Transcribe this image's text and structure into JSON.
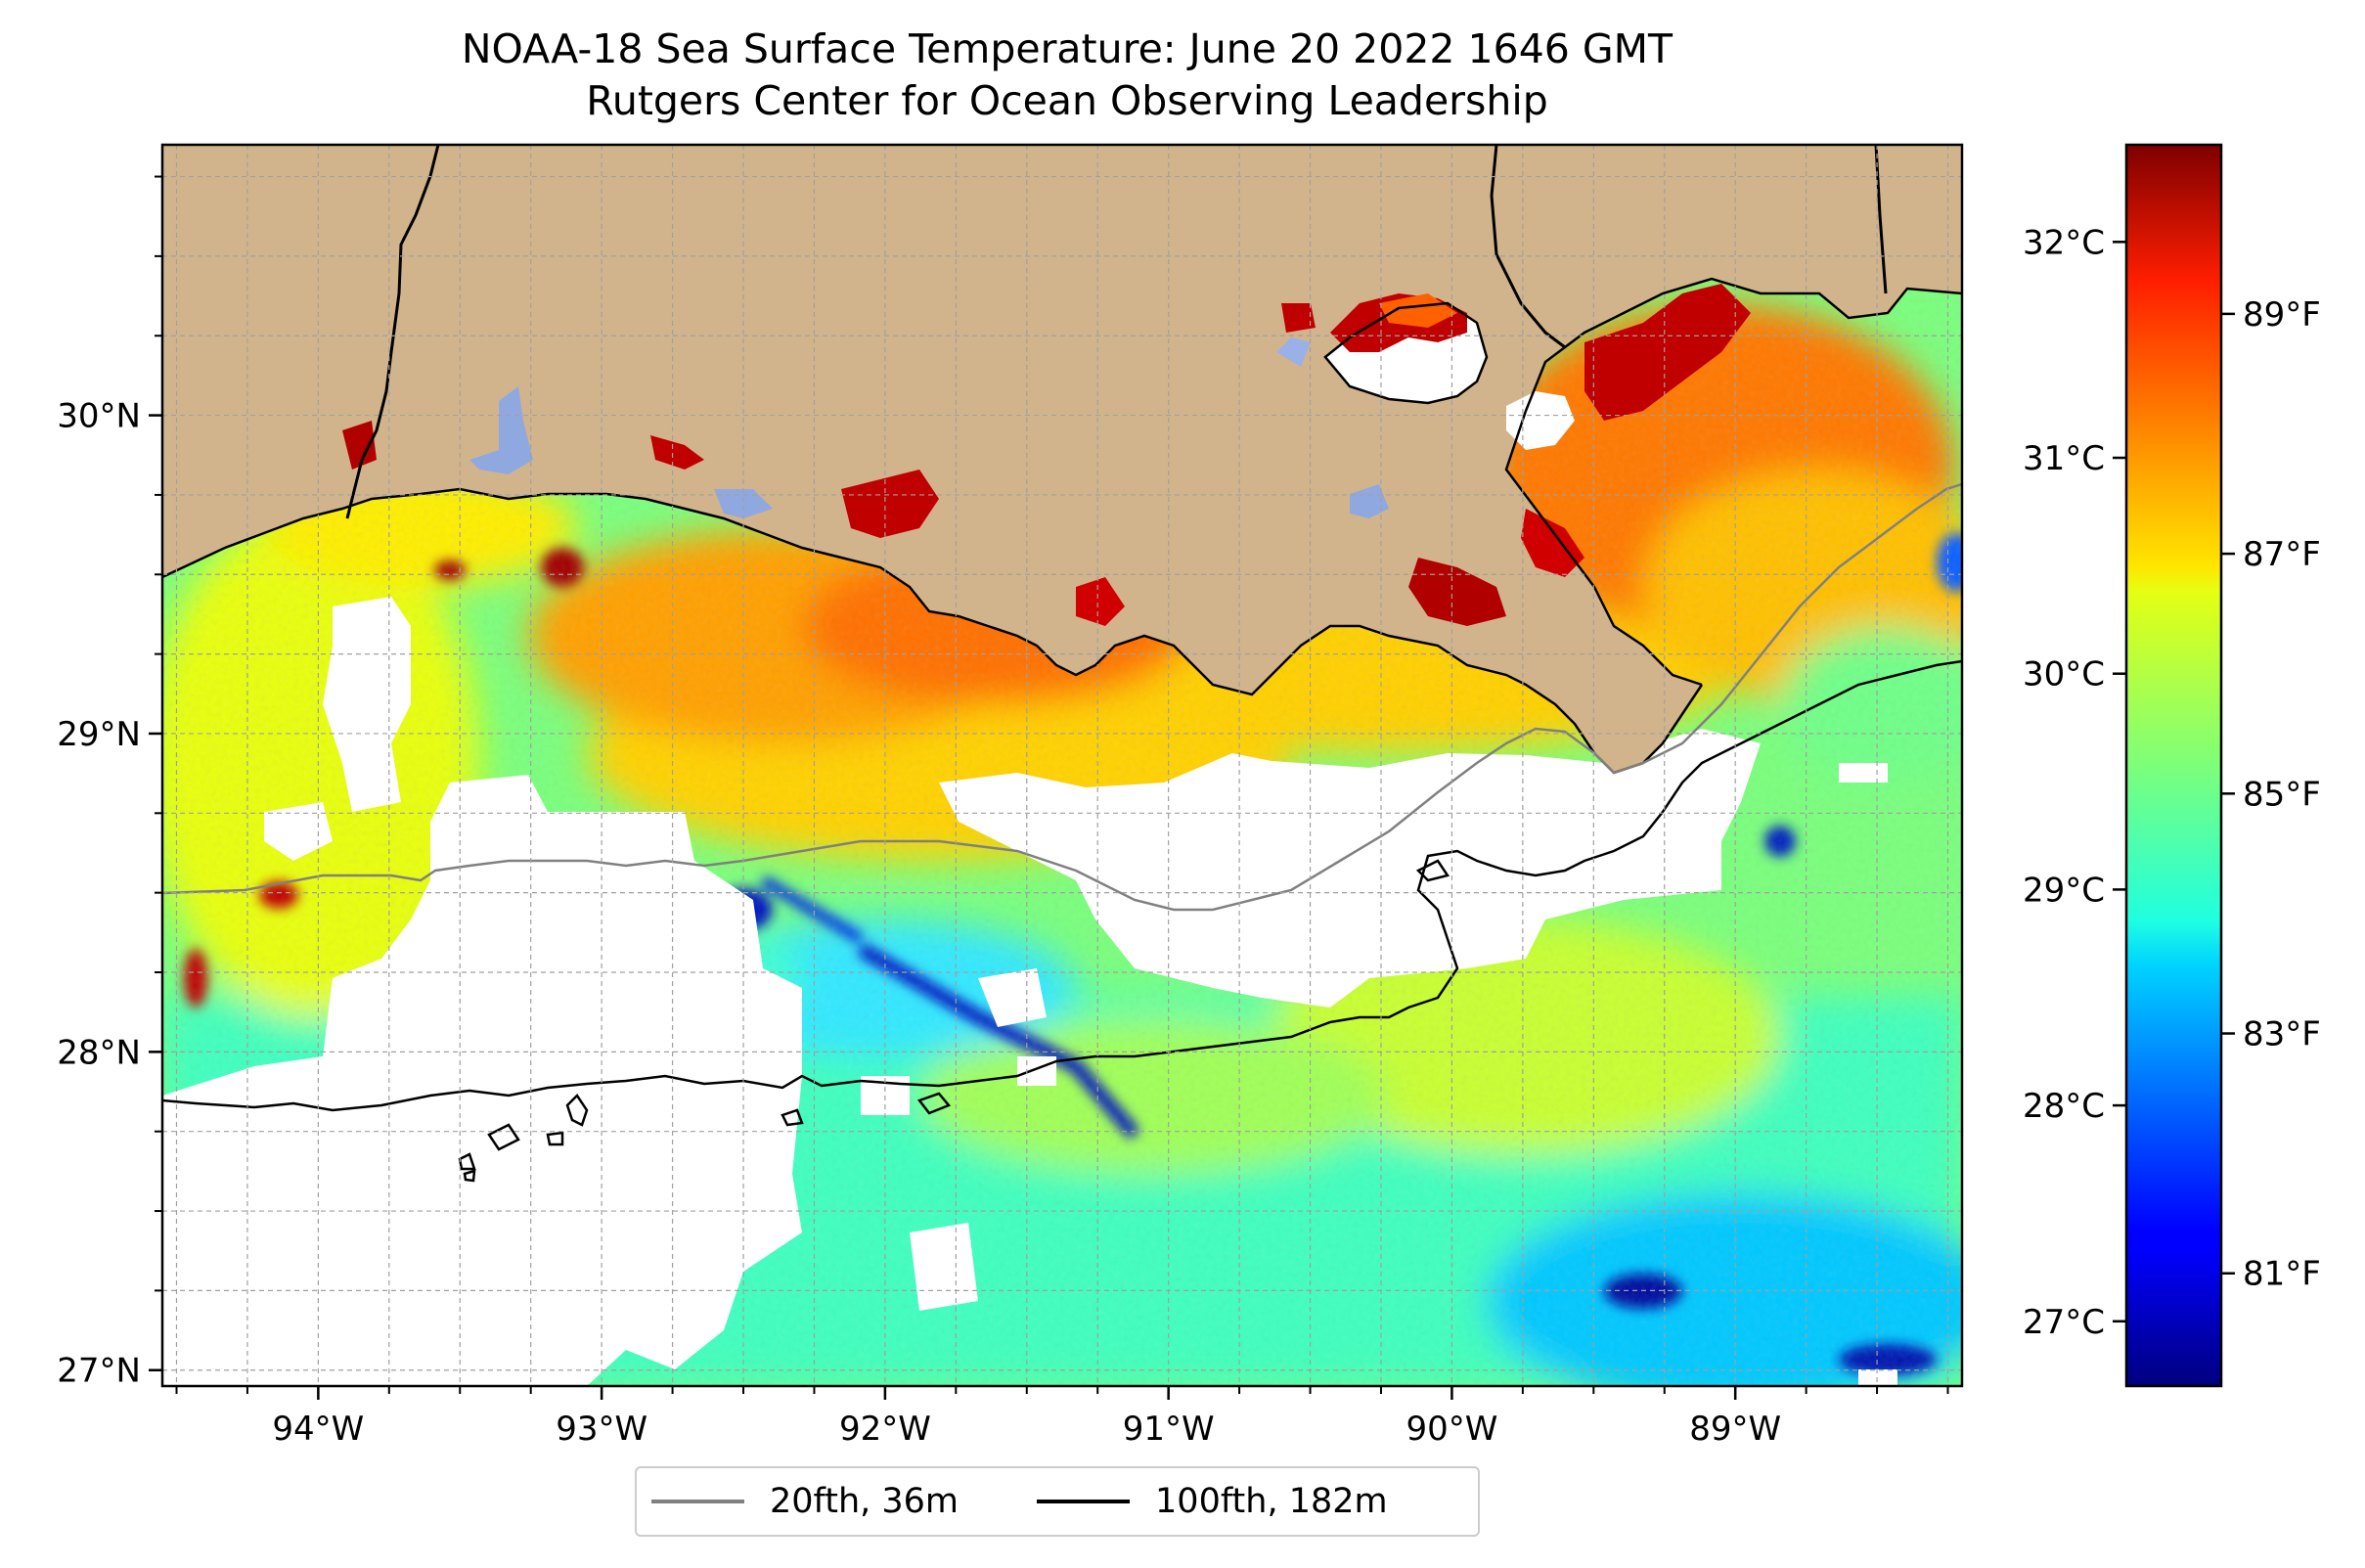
{
  "title": {
    "line1": "NOAA-18 Sea Surface Temperature: June 20 2022 1646 GMT",
    "line2": "Rutgers Center for Ocean Observing Leadership"
  },
  "map": {
    "lon_range": [
      -94.55,
      -88.2
    ],
    "lat_range": [
      26.95,
      30.85
    ],
    "lon_ticks": [
      {
        "value": -94,
        "label": "94°W"
      },
      {
        "value": -93,
        "label": "93°W"
      },
      {
        "value": -92,
        "label": "92°W"
      },
      {
        "value": -91,
        "label": "91°W"
      },
      {
        "value": -90,
        "label": "90°W"
      },
      {
        "value": -89,
        "label": "89°W"
      }
    ],
    "lat_ticks": [
      {
        "value": 27,
        "label": "27°N"
      },
      {
        "value": 28,
        "label": "28°N"
      },
      {
        "value": 29,
        "label": "29°N"
      },
      {
        "value": 30,
        "label": "30°N"
      }
    ],
    "minor_grid_step_deg": 0.25,
    "grid": true,
    "colors": {
      "land": "#d2b48c",
      "no_data": "#ffffff",
      "inland_water": "#8fa8e0",
      "grid": "#a0a0a0",
      "isobath_20fth": "#808080",
      "isobath_100fth": "#000000"
    }
  },
  "colorbar": {
    "colormap": "jet",
    "celsius_range": [
      26.7,
      32.45
    ],
    "celsius_ticks": [
      {
        "value": 27,
        "label": "27°C"
      },
      {
        "value": 28,
        "label": "28°C"
      },
      {
        "value": 29,
        "label": "29°C"
      },
      {
        "value": 30,
        "label": "30°C"
      },
      {
        "value": 31,
        "label": "31°C"
      },
      {
        "value": 32,
        "label": "32°C"
      }
    ],
    "fahrenheit_ticks": [
      {
        "value": 81,
        "label": "81°F"
      },
      {
        "value": 83,
        "label": "83°F"
      },
      {
        "value": 85,
        "label": "85°F"
      },
      {
        "value": 87,
        "label": "87°F"
      },
      {
        "value": 89,
        "label": "89°F"
      }
    ]
  },
  "legend": {
    "placement": "bottom-center",
    "items": [
      {
        "label": "20fth, 36m",
        "color": "#808080"
      },
      {
        "label": "100fth, 182m",
        "color": "#000000"
      }
    ]
  }
}
